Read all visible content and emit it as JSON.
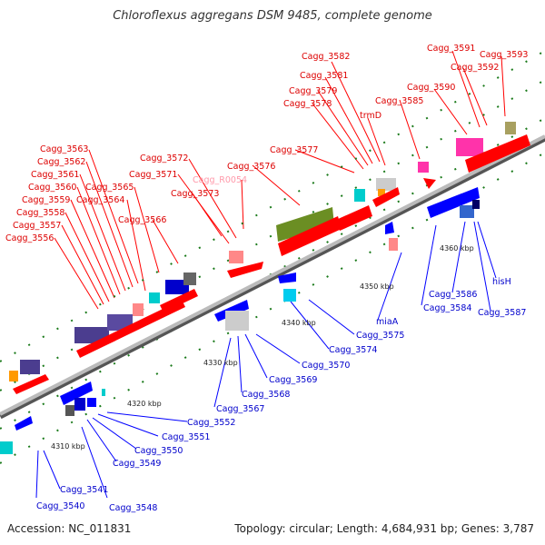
{
  "title": "Chloroflexus aggregans DSM 9485, complete genome",
  "footer": {
    "accession": "Accession: NC_011831",
    "summary": "Topology: circular; Length: 4,684,931 bp; Genes: 3,787"
  },
  "colors": {
    "forward": "#ff0000",
    "reverse": "#0000ff",
    "rna": "#ff9999",
    "backbone": "#999999"
  },
  "ticks": [
    "4310 kbp",
    "4320 kbp",
    "4330 kbp",
    "4340 kbp",
    "4350 kbp",
    "4360 kbp"
  ],
  "forward_labels": [
    "Cagg_3556",
    "Cagg_3557",
    "Cagg_3558",
    "Cagg_3559",
    "Cagg_3560",
    "Cagg_3561",
    "Cagg_3562",
    "Cagg_3563",
    "Cagg_3564",
    "Cagg_3565",
    "Cagg_3566",
    "Cagg_3571",
    "Cagg_3572",
    "Cagg_3573",
    "Cagg_R0054",
    "Cagg_3576",
    "Cagg_3577",
    "Cagg_3578",
    "Cagg_3579",
    "Cagg_3581",
    "Cagg_3582",
    "trmD",
    "Cagg_3585",
    "Cagg_3590",
    "Cagg_3591",
    "Cagg_3592",
    "Cagg_3593"
  ],
  "reverse_labels": [
    "Cagg_3540",
    "Cagg_3541",
    "Cagg_3548",
    "Cagg_3549",
    "Cagg_3550",
    "Cagg_3551",
    "Cagg_3552",
    "Cagg_3567",
    "Cagg_3568",
    "Cagg_3569",
    "Cagg_3570",
    "Cagg_3574",
    "Cagg_3575",
    "miaA",
    "Cagg_3584",
    "Cagg_3586",
    "Cagg_3587",
    "hisH"
  ]
}
